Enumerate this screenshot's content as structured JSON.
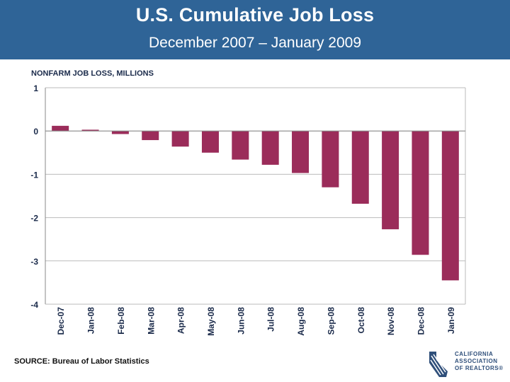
{
  "header": {
    "title": "U.S. Cumulative Job Loss",
    "subtitle": "December 2007 – January 2009"
  },
  "source": "SOURCE:  Bureau of Labor Statistics",
  "logo": {
    "line1": "CALIFORNIA",
    "line2": "ASSOCIATION",
    "line3": "OF REALTORS®",
    "mark_icon": "california-state-shield-icon"
  },
  "colors": {
    "header_bg": "#2f6497",
    "bar": "#9b2c5a",
    "grid": "#bbbbbb",
    "logo": "#2f4f7a"
  },
  "chart_data": {
    "type": "bar",
    "title": "",
    "ylabel": "NONFARM JOB LOSS, MILLIONS",
    "xlabel": "",
    "categories": [
      "Dec-07",
      "Jan-08",
      "Feb-08",
      "Mar-08",
      "Apr-08",
      "May-08",
      "Jun-08",
      "Jul-08",
      "Aug-08",
      "Sep-08",
      "Oct-08",
      "Nov-08",
      "Dec-08",
      "Jan-09"
    ],
    "values": [
      0.12,
      0.03,
      -0.07,
      -0.21,
      -0.36,
      -0.5,
      -0.66,
      -0.78,
      -0.97,
      -1.3,
      -1.68,
      -2.27,
      -2.86,
      -3.45
    ],
    "ylim": [
      -4,
      1
    ],
    "yticks": [
      1,
      0,
      -1,
      -2,
      -3,
      -4
    ],
    "grid": true,
    "legend": "none"
  }
}
